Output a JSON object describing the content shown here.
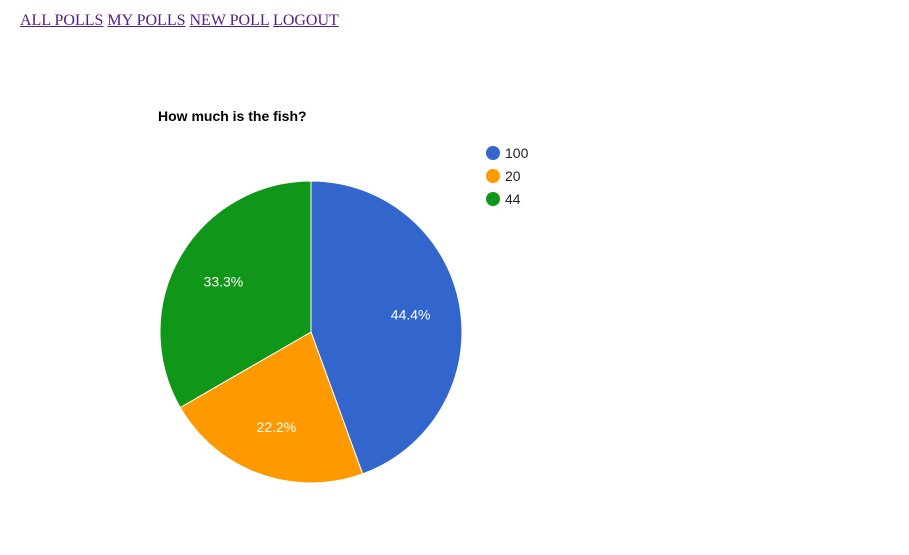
{
  "nav": {
    "links": [
      {
        "label": "ALL POLLS"
      },
      {
        "label": "MY POLLS"
      },
      {
        "label": "NEW POLL"
      },
      {
        "label": "LOGOUT"
      }
    ]
  },
  "chart_data": {
    "type": "pie",
    "title": "How much is the fish?",
    "legend_position": "right",
    "slices": [
      {
        "label": "100",
        "value": 44.4,
        "display": "44.4%",
        "color": "#3366cc"
      },
      {
        "label": "20",
        "value": 22.2,
        "display": "22.2%",
        "color": "#ff9900"
      },
      {
        "label": "44",
        "value": 33.3,
        "display": "33.3%",
        "color": "#109618"
      }
    ]
  }
}
